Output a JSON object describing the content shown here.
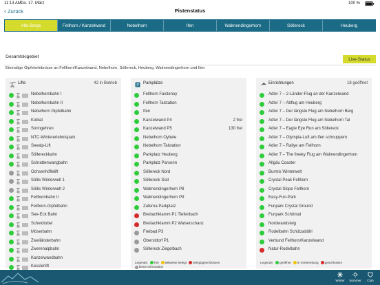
{
  "status_bar": {
    "time": "11:13 AM",
    "date": "Do. 17. März",
    "battery": "100 %"
  },
  "nav": {
    "back": "Zurück",
    "title": "Pistenstatus"
  },
  "tabs": [
    "Alle Berge",
    "Fellhorn / Kanzelwand",
    "Nebelhorn",
    "Ifen",
    "Walmendingerhorn",
    "Söllereck",
    "Heuberg"
  ],
  "active_tab": 0,
  "section": {
    "title": "Gesamtskigebiet",
    "button": "Live-Status",
    "description": "Einmalige Gipfelerlebnisse an Fellhorn/Kanzelwand, Nebelhorn, Söllereck, Heuberg, Walmendingerhorn und Ifen"
  },
  "columns": [
    {
      "title": "Lifte",
      "summary": "42 in Betrieb",
      "items": [
        {
          "name": "Nebelhornbahn I",
          "status": "open"
        },
        {
          "name": "Nebelhornbahn II",
          "status": "open"
        },
        {
          "name": "Nebelhorn Gipfelbahn",
          "status": "open"
        },
        {
          "name": "Koblat",
          "status": "open"
        },
        {
          "name": "Sonngehren",
          "status": "open"
        },
        {
          "name": "NTC-Wintererlebnispark",
          "status": "open"
        },
        {
          "name": "Seealp-Lift",
          "status": "open"
        },
        {
          "name": "Söllereckbahn",
          "status": "open"
        },
        {
          "name": "Schrattenwangbahn",
          "status": "open"
        },
        {
          "name": "Ochsenhöflelift",
          "status": "unknown"
        },
        {
          "name": "Söllis Winterwelt 1",
          "status": "unknown"
        },
        {
          "name": "Söllis Winterwelt 2",
          "status": "unknown"
        },
        {
          "name": "Fellhornbahn II",
          "status": "open"
        },
        {
          "name": "Fellhorn-Gipfelbahn",
          "status": "open"
        },
        {
          "name": "See-Eck Bahn",
          "status": "open"
        },
        {
          "name": "Scheidtobel",
          "status": "open"
        },
        {
          "name": "Möserbahn",
          "status": "open"
        },
        {
          "name": "Zweiländerbahn",
          "status": "open"
        },
        {
          "name": "Zwerenalpbahn",
          "status": "open"
        },
        {
          "name": "Kanzelwandbahn",
          "status": "open"
        },
        {
          "name": "Kesslerlift",
          "status": "open"
        }
      ]
    },
    {
      "title": "Parkplätze",
      "items": [
        {
          "name": "Fellhorn Faistenoy",
          "status": "open"
        },
        {
          "name": "Fellhorn Talstation",
          "status": "open"
        },
        {
          "name": "Ifen",
          "status": "open"
        },
        {
          "name": "Kanzelwand P4",
          "status": "open",
          "info": "2 frei"
        },
        {
          "name": "Kanzelwand P5",
          "status": "open",
          "info": "130 frei"
        },
        {
          "name": "Nebelhorn Oybele",
          "status": "open"
        },
        {
          "name": "Nebelhorn Talstation",
          "status": "open"
        },
        {
          "name": "Parkplatz Heuberg",
          "status": "open"
        },
        {
          "name": "Parkplatz Parsenn",
          "status": "open"
        },
        {
          "name": "Söllereck Nord",
          "status": "open"
        },
        {
          "name": "Söllereck Süd",
          "status": "open"
        },
        {
          "name": "Walmendingerhorn P8",
          "status": "open"
        },
        {
          "name": "Walmendingerhorn P9",
          "status": "open"
        },
        {
          "name": "Zaferna Parkplatz",
          "status": "open"
        },
        {
          "name": "Breitachklamm P1 Tiefenbach",
          "status": "closed"
        },
        {
          "name": "Breitachklamm P2 Walserschanz",
          "status": "closed"
        },
        {
          "name": "Freibad P3",
          "status": "unknown"
        },
        {
          "name": "Oberstdorf P1",
          "status": "unknown"
        },
        {
          "name": "Söllereck Ziegelbach",
          "status": "unknown"
        }
      ],
      "legend_title": "Legende:",
      "legend": [
        {
          "label": "frei",
          "status": "open"
        },
        {
          "label": "teilweise belegt",
          "status": "partial"
        },
        {
          "label": "belegt/geschlossen",
          "status": "closed"
        },
        {
          "label": "keine Information",
          "status": "unknown"
        }
      ]
    },
    {
      "title": "Einrichtungen",
      "summary": "18 geöffnet",
      "items": [
        {
          "name": "Adler 7 – 2-Länder-Flug an der Kanzelwand",
          "status": "open"
        },
        {
          "name": "Adler 7 – Abflug am Heuberg",
          "status": "open"
        },
        {
          "name": "Adler 7 – Der längste Flug am Nebelhorn Berg",
          "status": "open"
        },
        {
          "name": "Adler 7 – Der längste Flug am Nebelhorn Tal",
          "status": "open"
        },
        {
          "name": "Adler 7 – Eagle Eye Run am Söllereck",
          "status": "open"
        },
        {
          "name": "Adler 7 – Olympia-Luft am Ifen schnuppern",
          "status": "open"
        },
        {
          "name": "Adler 7 – Rallye am Fellhorn",
          "status": "open"
        },
        {
          "name": "Adler 7 – The freeky Flug am Walmendingerhorn",
          "status": "open"
        },
        {
          "name": "Allgäu Coaster",
          "status": "open"
        },
        {
          "name": "Burmis Winterwelt",
          "status": "open"
        },
        {
          "name": "Crystal Peak Fellhorn",
          "status": "open"
        },
        {
          "name": "Crystal Slope Fellhorn",
          "status": "open"
        },
        {
          "name": "Easy-Fun-Park",
          "status": "open"
        },
        {
          "name": "Funpark Crystal Ground",
          "status": "open"
        },
        {
          "name": "Funpark Schöntal",
          "status": "open"
        },
        {
          "name": "Nordwandsteig",
          "status": "open"
        },
        {
          "name": "Rodelbahn Schützabühl",
          "status": "open"
        },
        {
          "name": "Verbund Fellhorn/Kanzelwand",
          "status": "open"
        },
        {
          "name": "Natur-Rodelbahn",
          "status": "closed"
        }
      ],
      "legend_title": "Legende:",
      "legend": [
        {
          "label": "geöffnet",
          "status": "open"
        },
        {
          "label": "in Vorbereitung",
          "status": "partial"
        },
        {
          "label": "geschlossen",
          "status": "closed"
        }
      ]
    }
  ],
  "bottom_tabs": [
    "Winter",
    "Sommer",
    "Club"
  ]
}
